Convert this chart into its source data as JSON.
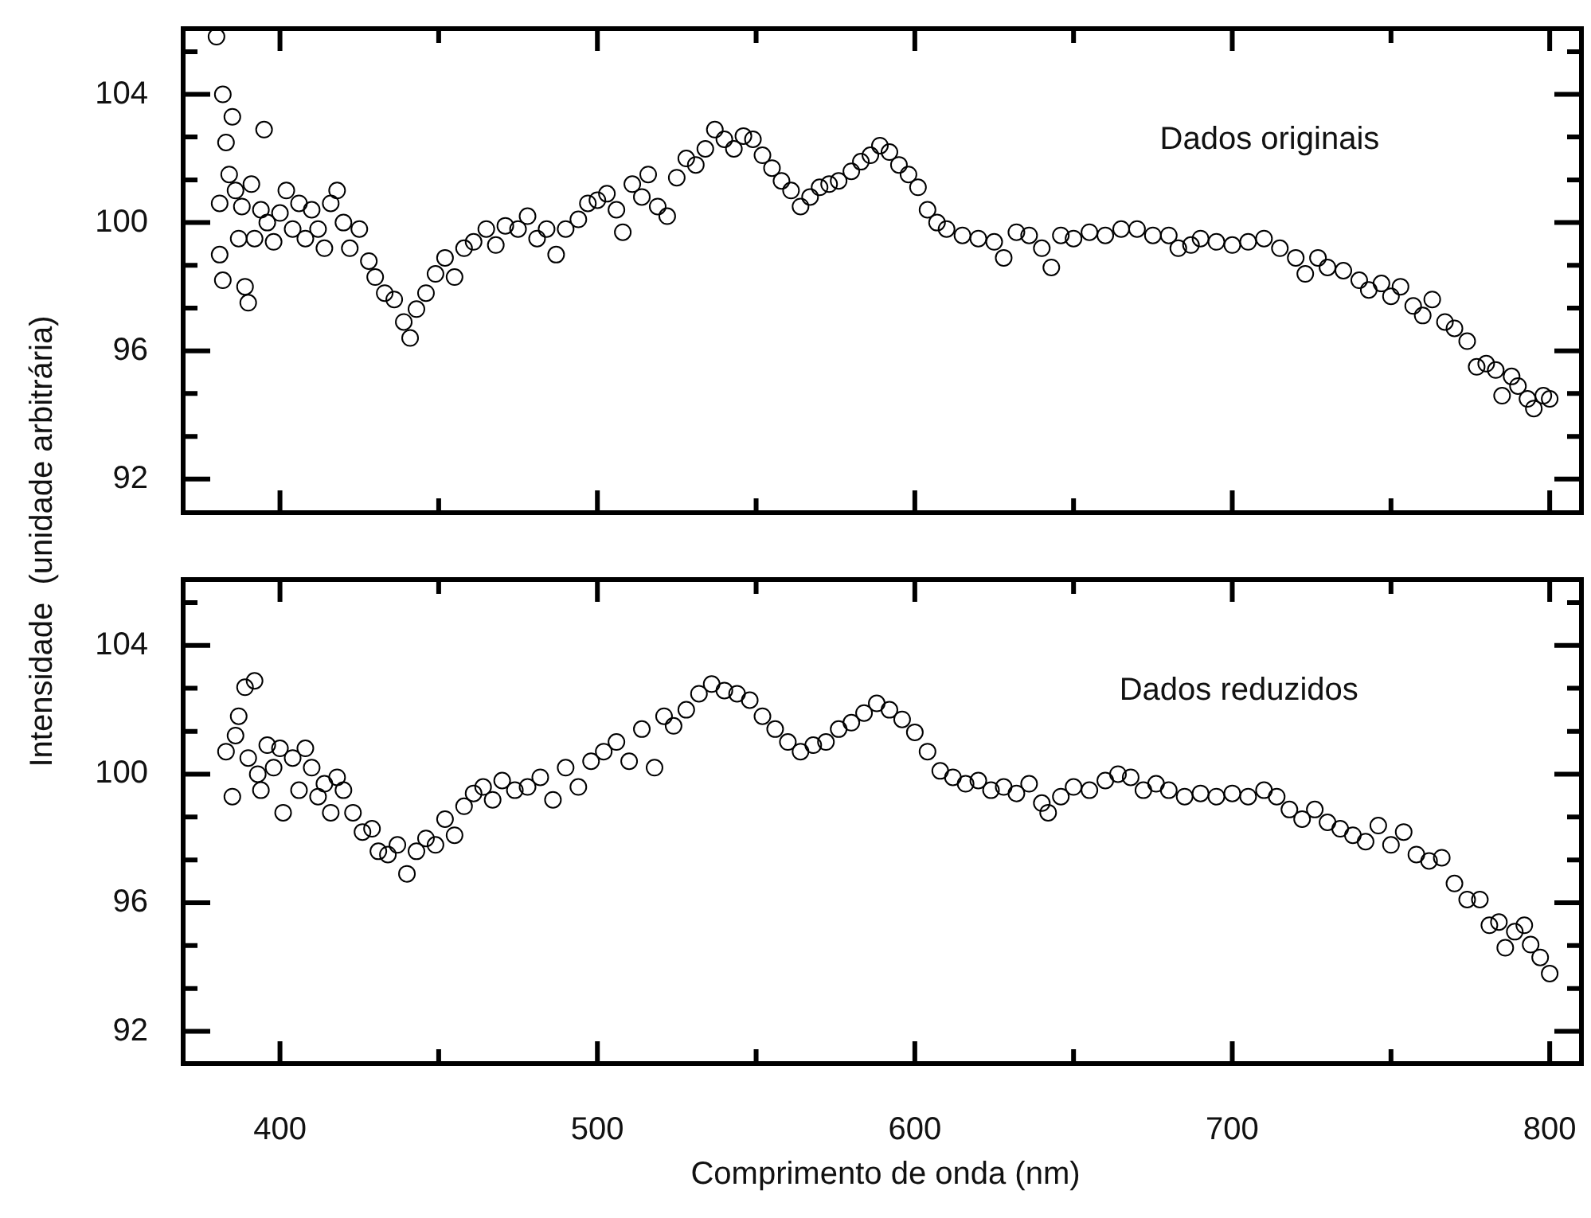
{
  "chart_data": [
    {
      "type": "scatter",
      "ylabel": "Intensidade  (unidade arbitrária)",
      "annotations": [
        "Dados originais"
      ],
      "marker": "circle",
      "tick_labels": "y",
      "xlim": [
        369.5,
        810
      ],
      "ylim": [
        90.95,
        106.05
      ],
      "xticks": [
        400,
        {
          "value": 450,
          "label": null
        },
        500,
        {
          "value": 550,
          "label": null
        },
        600,
        {
          "value": 650,
          "label": null
        },
        700,
        {
          "value": 750,
          "label": null
        },
        800
      ],
      "yticks": [
        92,
        {
          "value": 93.33,
          "label": null
        },
        {
          "value": 94.67,
          "label": null
        },
        96,
        {
          "value": 97.33,
          "label": null
        },
        {
          "value": 98.67,
          "label": null
        },
        100,
        {
          "value": 101.33,
          "label": null
        },
        {
          "value": 102.67,
          "label": null
        },
        104,
        {
          "value": 105.33,
          "label": null
        }
      ],
      "series": [
        {
          "color": "#000000",
          "x": [
            380,
            381,
            381,
            382,
            382,
            383,
            384,
            385,
            386,
            387,
            388,
            389,
            390,
            391,
            392,
            394,
            395,
            396,
            398,
            400,
            402,
            404,
            406,
            408,
            410,
            412,
            414,
            416,
            418,
            420,
            422,
            425,
            428,
            430,
            433,
            436,
            439,
            441,
            443,
            446,
            449,
            452,
            455,
            458,
            461,
            465,
            468,
            471,
            475,
            478,
            481,
            484,
            487,
            490,
            494,
            497,
            500,
            503,
            506,
            508,
            511,
            514,
            516,
            519,
            522,
            525,
            528,
            531,
            534,
            537,
            540,
            543,
            546,
            549,
            552,
            555,
            558,
            561,
            564,
            567,
            570,
            573,
            576,
            580,
            583,
            586,
            589,
            592,
            595,
            598,
            601,
            604,
            607,
            610,
            615,
            620,
            625,
            628,
            632,
            636,
            640,
            643,
            646,
            650,
            655,
            660,
            665,
            670,
            675,
            680,
            683,
            687,
            690,
            695,
            700,
            705,
            710,
            715,
            720,
            723,
            727,
            730,
            735,
            740,
            743,
            747,
            750,
            753,
            757,
            760,
            763,
            767,
            770,
            774,
            777,
            780,
            783,
            785,
            788,
            790,
            793,
            795,
            798,
            800
          ],
          "values": [
            105.8,
            100.6,
            99,
            104,
            98.2,
            102.5,
            101.5,
            103.3,
            101,
            99.5,
            100.5,
            98,
            97.5,
            101.2,
            99.5,
            100.4,
            102.9,
            100,
            99.4,
            100.3,
            101,
            99.8,
            100.6,
            99.5,
            100.4,
            99.8,
            99.2,
            100.6,
            101,
            100,
            99.2,
            99.8,
            98.8,
            98.3,
            97.8,
            97.6,
            96.9,
            96.4,
            97.3,
            97.8,
            98.4,
            98.9,
            98.3,
            99.2,
            99.4,
            99.8,
            99.3,
            99.9,
            99.8,
            100.2,
            99.5,
            99.8,
            99,
            99.8,
            100.1,
            100.6,
            100.7,
            100.9,
            100.4,
            99.7,
            101.2,
            100.8,
            101.5,
            100.5,
            100.2,
            101.4,
            102,
            101.8,
            102.3,
            102.9,
            102.6,
            102.3,
            102.7,
            102.6,
            102.1,
            101.7,
            101.3,
            101,
            100.5,
            100.8,
            101.1,
            101.2,
            101.3,
            101.6,
            101.9,
            102.1,
            102.4,
            102.2,
            101.8,
            101.5,
            101.1,
            100.4,
            100,
            99.8,
            99.6,
            99.5,
            99.4,
            98.9,
            99.7,
            99.6,
            99.2,
            98.6,
            99.6,
            99.5,
            99.7,
            99.6,
            99.8,
            99.8,
            99.6,
            99.6,
            99.2,
            99.3,
            99.5,
            99.4,
            99.3,
            99.4,
            99.5,
            99.2,
            98.9,
            98.4,
            98.9,
            98.6,
            98.5,
            98.2,
            97.9,
            98.1,
            97.7,
            98,
            97.4,
            97.1,
            97.6,
            96.9,
            96.7,
            96.3,
            95.5,
            95.6,
            95.4,
            94.6,
            95.2,
            94.9,
            94.5,
            94.2,
            94.6,
            94.5
          ]
        }
      ]
    },
    {
      "type": "scatter",
      "xlabel": "Comprimento de onda (nm)",
      "annotations": [
        "Dados reduzidos"
      ],
      "marker": "circle",
      "xlim": [
        369.5,
        810
      ],
      "ylim": [
        91,
        106.05
      ],
      "xticks": [
        400,
        {
          "value": 450,
          "label": null
        },
        500,
        {
          "value": 550,
          "label": null
        },
        600,
        {
          "value": 650,
          "label": null
        },
        700,
        {
          "value": 750,
          "label": null
        },
        800
      ],
      "yticks": [
        92,
        {
          "value": 93.33,
          "label": null
        },
        {
          "value": 94.67,
          "label": null
        },
        96,
        {
          "value": 97.33,
          "label": null
        },
        {
          "value": 98.67,
          "label": null
        },
        100,
        {
          "value": 101.33,
          "label": null
        },
        {
          "value": 102.67,
          "label": null
        },
        104,
        {
          "value": 105.33,
          "label": null
        }
      ],
      "series": [
        {
          "color": "#000000",
          "x": [
            383,
            385,
            386,
            387,
            389,
            390,
            392,
            393,
            394,
            396,
            398,
            400,
            401,
            404,
            406,
            408,
            410,
            412,
            414,
            416,
            418,
            420,
            423,
            426,
            429,
            431,
            434,
            437,
            440,
            443,
            446,
            449,
            452,
            455,
            458,
            461,
            464,
            467,
            470,
            474,
            478,
            482,
            486,
            490,
            494,
            498,
            502,
            506,
            510,
            514,
            518,
            521,
            524,
            528,
            532,
            536,
            540,
            544,
            548,
            552,
            556,
            560,
            564,
            568,
            572,
            576,
            580,
            584,
            588,
            592,
            596,
            600,
            604,
            608,
            612,
            616,
            620,
            624,
            628,
            632,
            636,
            640,
            642,
            646,
            650,
            655,
            660,
            664,
            668,
            672,
            676,
            680,
            685,
            690,
            695,
            700,
            705,
            710,
            714,
            718,
            722,
            726,
            730,
            734,
            738,
            742,
            746,
            750,
            754,
            758,
            762,
            766,
            770,
            774,
            778,
            781,
            784,
            786,
            789,
            792,
            794,
            797,
            800
          ],
          "values": [
            100.7,
            99.3,
            101.2,
            101.8,
            102.7,
            100.5,
            102.9,
            100,
            99.5,
            100.9,
            100.2,
            100.8,
            98.8,
            100.5,
            99.5,
            100.8,
            100.2,
            99.3,
            99.7,
            98.8,
            99.9,
            99.5,
            98.8,
            98.2,
            98.3,
            97.6,
            97.5,
            97.8,
            96.9,
            97.6,
            98,
            97.8,
            98.6,
            98.1,
            99,
            99.4,
            99.6,
            99.2,
            99.8,
            99.5,
            99.6,
            99.9,
            99.2,
            100.2,
            99.6,
            100.4,
            100.7,
            101,
            100.4,
            101.4,
            100.2,
            101.8,
            101.5,
            102,
            102.5,
            102.8,
            102.6,
            102.5,
            102.3,
            101.8,
            101.4,
            101,
            100.7,
            100.9,
            101,
            101.4,
            101.6,
            101.9,
            102.2,
            102,
            101.7,
            101.3,
            100.7,
            100.1,
            99.9,
            99.7,
            99.8,
            99.5,
            99.6,
            99.4,
            99.7,
            99.1,
            98.8,
            99.3,
            99.6,
            99.5,
            99.8,
            100,
            99.9,
            99.5,
            99.7,
            99.5,
            99.3,
            99.4,
            99.3,
            99.4,
            99.3,
            99.5,
            99.3,
            98.9,
            98.6,
            98.9,
            98.5,
            98.3,
            98.1,
            97.9,
            98.4,
            97.8,
            98.2,
            97.5,
            97.3,
            97.4,
            96.6,
            96.1,
            96.1,
            95.3,
            95.4,
            94.6,
            95.1,
            95.3,
            94.7,
            94.3,
            93.8
          ]
        }
      ]
    }
  ]
}
